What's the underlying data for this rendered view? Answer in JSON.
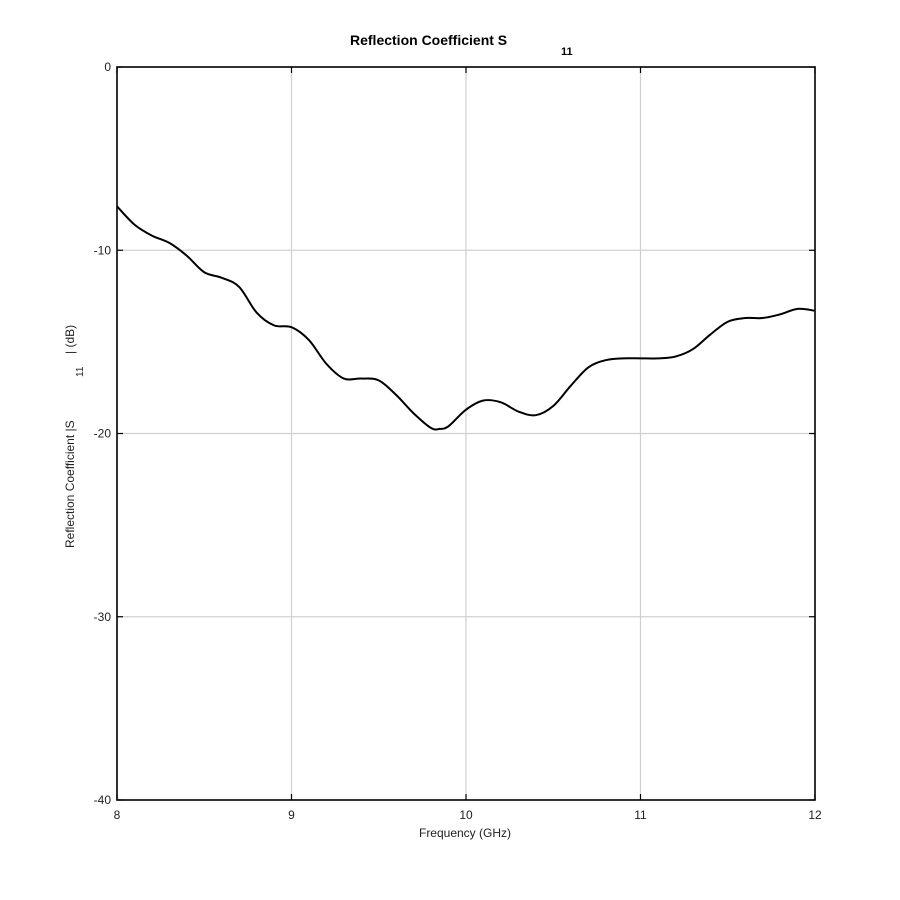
{
  "chart_data": {
    "type": "line",
    "title": {
      "main": "Reflection Coefficient S",
      "subscript": "11"
    },
    "xlabel": "Frequency (GHz)",
    "ylabel": {
      "prefix": "Reflection Coefficient |S",
      "subscript": "11",
      "suffix": "| (dB)"
    },
    "xlim": [
      8,
      12
    ],
    "ylim": [
      -40,
      0
    ],
    "xticks": [
      8,
      9,
      10,
      11,
      12
    ],
    "yticks": [
      0,
      -10,
      -20,
      -30,
      -40
    ],
    "grid": true,
    "series": [
      {
        "color": "#000000",
        "x": [
          8.0,
          8.1,
          8.2,
          8.3,
          8.4,
          8.5,
          8.6,
          8.7,
          8.8,
          8.9,
          9.0,
          9.1,
          9.2,
          9.3,
          9.4,
          9.5,
          9.6,
          9.7,
          9.8,
          9.85,
          9.9,
          10.0,
          10.1,
          10.2,
          10.3,
          10.4,
          10.5,
          10.6,
          10.7,
          10.8,
          10.9,
          11.0,
          11.1,
          11.2,
          11.3,
          11.4,
          11.5,
          11.6,
          11.7,
          11.8,
          11.9,
          12.0
        ],
        "y": [
          -7.6,
          -8.6,
          -9.2,
          -9.6,
          -10.3,
          -11.2,
          -11.5,
          -12.0,
          -13.4,
          -14.1,
          -14.2,
          -14.9,
          -16.2,
          -17.0,
          -17.0,
          -17.1,
          -17.9,
          -18.9,
          -19.7,
          -19.75,
          -19.6,
          -18.7,
          -18.2,
          -18.3,
          -18.8,
          -19.0,
          -18.5,
          -17.4,
          -16.4,
          -16.0,
          -15.9,
          -15.9,
          -15.9,
          -15.8,
          -15.4,
          -14.6,
          -13.9,
          -13.7,
          -13.7,
          -13.5,
          -13.2,
          -13.3
        ]
      }
    ]
  }
}
